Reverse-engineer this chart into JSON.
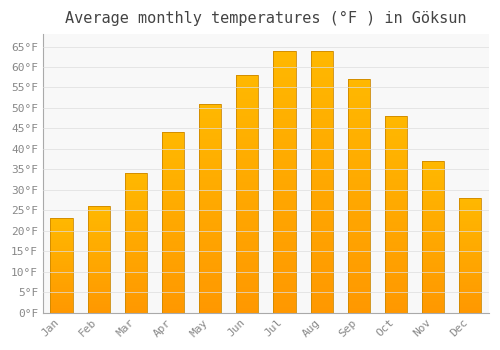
{
  "title": "Average monthly temperatures (°F ) in Göksun",
  "months": [
    "Jan",
    "Feb",
    "Mar",
    "Apr",
    "May",
    "Jun",
    "Jul",
    "Aug",
    "Sep",
    "Oct",
    "Nov",
    "Dec"
  ],
  "values": [
    23,
    26,
    34,
    44,
    51,
    58,
    64,
    64,
    57,
    48,
    37,
    28
  ],
  "bar_color_top": "#FFB800",
  "bar_color_bottom": "#FF9800",
  "bar_edge_color": "#CC8800",
  "background_color": "#FFFFFF",
  "plot_bg_color": "#F8F8F8",
  "grid_color": "#DDDDDD",
  "text_color": "#888888",
  "title_color": "#444444",
  "ylim": [
    0,
    68
  ],
  "yticks": [
    0,
    5,
    10,
    15,
    20,
    25,
    30,
    35,
    40,
    45,
    50,
    55,
    60,
    65
  ],
  "ylabel_suffix": "°F",
  "title_fontsize": 11,
  "tick_fontsize": 8,
  "figsize": [
    5.0,
    3.5
  ],
  "dpi": 100,
  "bar_width": 0.6
}
